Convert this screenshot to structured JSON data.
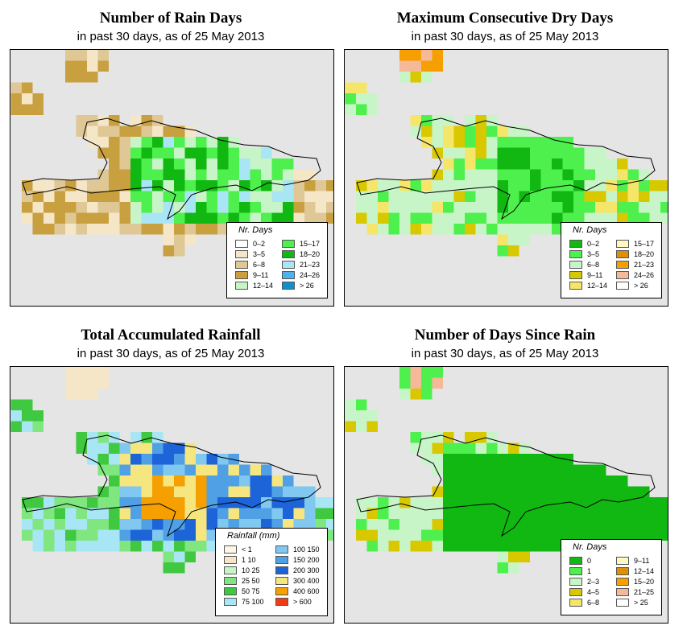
{
  "panels": [
    {
      "title": "Number of Rain Days",
      "subtitle": "in past 30 days, as of  25 May 2013",
      "legend_title": "Nr. Days",
      "legend": [
        {
          "label": "0–2",
          "color": "#ffffff"
        },
        {
          "label": "3–5",
          "color": "#f5e6c8"
        },
        {
          "label": "6–8",
          "color": "#e0c896"
        },
        {
          "label": "9–11",
          "color": "#c8a040"
        },
        {
          "label": "12–14",
          "color": "#c8f5c8"
        },
        {
          "label": "15–17",
          "color": "#4ef04e"
        },
        {
          "label": "18–20",
          "color": "#12b812"
        },
        {
          "label": "21–23",
          "color": "#a8e6f5"
        },
        {
          "label": "24–26",
          "color": "#50b0ec"
        },
        {
          "label": "> 26",
          "color": "#1090c8"
        }
      ]
    },
    {
      "title": "Maximum Consecutive Dry Days",
      "subtitle": "in past 30 days, as of  25 May 2013",
      "legend_title": "Nr. Days",
      "legend": [
        {
          "label": "0–2",
          "color": "#12b812"
        },
        {
          "label": "3–5",
          "color": "#4ef04e"
        },
        {
          "label": "6–8",
          "color": "#c8f5c8"
        },
        {
          "label": "9–11",
          "color": "#d8c800"
        },
        {
          "label": "12–14",
          "color": "#f5e66a"
        },
        {
          "label": "15–17",
          "color": "#fff8c0"
        },
        {
          "label": "18–20",
          "color": "#e09000"
        },
        {
          "label": "21–23",
          "color": "#f5a000"
        },
        {
          "label": "24–26",
          "color": "#f5b898"
        },
        {
          "label": "> 26",
          "color": "#ffffff"
        }
      ]
    },
    {
      "title": "Total Accumulated Rainfall",
      "subtitle": "in past 30 days, as of  25 May 2013",
      "legend_title": "Rainfall (mm)",
      "legend": [
        {
          "label": "< 1",
          "color": "#fff8e6"
        },
        {
          "label": "1     10",
          "color": "#f5e6c8"
        },
        {
          "label": "10     25",
          "color": "#c8f5c8"
        },
        {
          "label": "25     50",
          "color": "#80e680"
        },
        {
          "label": "50     75",
          "color": "#40c840"
        },
        {
          "label": "75   100",
          "color": "#a8e6f5"
        },
        {
          "label": "100   150",
          "color": "#80c8f0"
        },
        {
          "label": "150   200",
          "color": "#50a0e6"
        },
        {
          "label": "200   300",
          "color": "#1c64d8"
        },
        {
          "label": "300   400",
          "color": "#f5e680"
        },
        {
          "label": "400   600",
          "color": "#f5a000"
        },
        {
          "label": "> 600",
          "color": "#f03c14"
        }
      ]
    },
    {
      "title": "Number of Days Since Rain",
      "subtitle": "in past 30 days, as of  25 May 2013",
      "legend_title": "Nr. Days",
      "legend": [
        {
          "label": "0",
          "color": "#12b812"
        },
        {
          "label": "1",
          "color": "#4ef04e"
        },
        {
          "label": "2–3",
          "color": "#c8f5c8"
        },
        {
          "label": "4–5",
          "color": "#d8c800"
        },
        {
          "label": "6–8",
          "color": "#f5e66a"
        },
        {
          "label": "9–11",
          "color": "#fff8c0"
        },
        {
          "label": "12–14",
          "color": "#e09000"
        },
        {
          "label": "15–20",
          "color": "#f5a000"
        },
        {
          "label": "21–25",
          "color": "#f5b898"
        },
        {
          "label": "> 25",
          "color": "#ffffff"
        }
      ]
    }
  ]
}
